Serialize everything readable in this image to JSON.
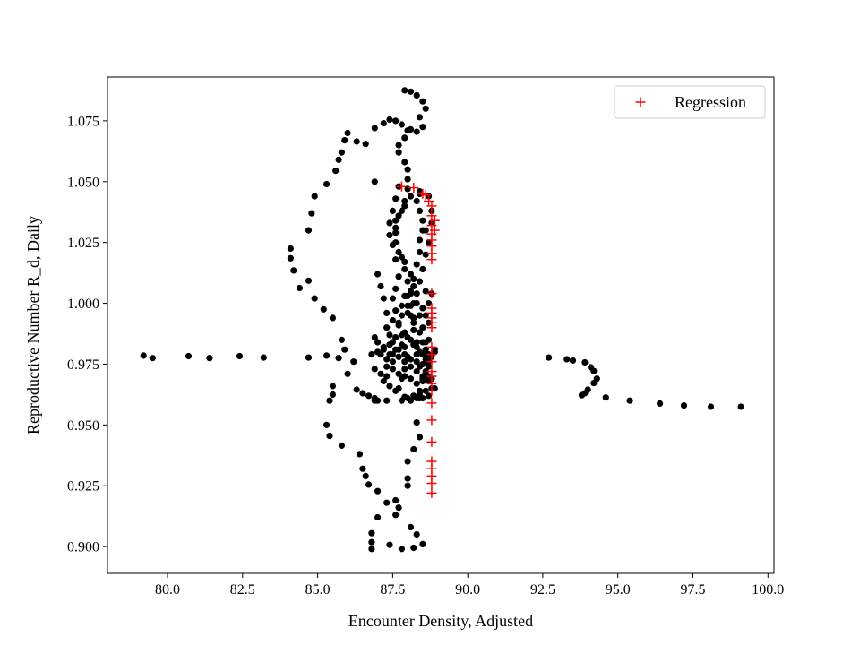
{
  "chart_data": {
    "type": "scatter",
    "xlabel": "Encounter Density, Adjusted",
    "ylabel": "Reproductive Number R_d, Daily",
    "xlim": [
      78.0,
      100.2
    ],
    "ylim": [
      0.889,
      1.093
    ],
    "xticks": [
      "80.0",
      "82.5",
      "85.0",
      "87.5",
      "90.0",
      "92.5",
      "95.0",
      "97.5",
      "100.0"
    ],
    "yticks": [
      "0.900",
      "0.925",
      "0.950",
      "0.975",
      "1.000",
      "1.025",
      "1.050",
      "1.075"
    ],
    "grid": false,
    "legend": {
      "placement": "top-right",
      "entries": [
        "Regression"
      ]
    },
    "colors": {
      "data": "#000000",
      "regression": "#ff0000"
    },
    "series": [
      {
        "marker": "circle",
        "points": [
          [
            79.2,
            0.9785
          ],
          [
            79.5,
            0.9775
          ],
          [
            80.7,
            0.9783
          ],
          [
            81.4,
            0.9775
          ],
          [
            82.4,
            0.9783
          ],
          [
            83.2,
            0.9777
          ],
          [
            84.7,
            0.9777
          ],
          [
            85.3,
            0.9785
          ],
          [
            85.7,
            0.9775
          ],
          [
            92.7,
            0.9777
          ],
          [
            93.3,
            0.977
          ],
          [
            93.5,
            0.9765
          ],
          [
            93.9,
            0.9757
          ],
          [
            94.1,
            0.9737
          ],
          [
            94.2,
            0.9722
          ],
          [
            94.3,
            0.969
          ],
          [
            94.2,
            0.9672
          ],
          [
            94.0,
            0.9645
          ],
          [
            93.9,
            0.963
          ],
          [
            93.8,
            0.9622
          ],
          [
            94.6,
            0.9613
          ],
          [
            95.4,
            0.96
          ],
          [
            96.4,
            0.9588
          ],
          [
            97.2,
            0.958
          ],
          [
            98.1,
            0.9575
          ],
          [
            99.1,
            0.9575
          ],
          [
            85.5,
            0.966
          ],
          [
            85.5,
            0.9625
          ],
          [
            85.4,
            0.96
          ],
          [
            85.3,
            0.95
          ],
          [
            85.4,
            0.9455
          ],
          [
            85.8,
            0.9415
          ],
          [
            86.4,
            0.938
          ],
          [
            86.5,
            0.932
          ],
          [
            86.6,
            0.929
          ],
          [
            86.7,
            0.9255
          ],
          [
            87.0,
            0.9228
          ],
          [
            87.3,
            0.918
          ],
          [
            87.0,
            0.912
          ],
          [
            86.8,
            0.9055
          ],
          [
            86.8,
            0.9018
          ],
          [
            86.8,
            0.899
          ],
          [
            87.4,
            0.9007
          ],
          [
            87.8,
            0.899
          ],
          [
            88.2,
            0.8995
          ],
          [
            88.5,
            0.901
          ],
          [
            88.3,
            0.905
          ],
          [
            88.1,
            0.908
          ],
          [
            87.6,
            0.913
          ],
          [
            87.7,
            0.916
          ],
          [
            87.6,
            0.919
          ],
          [
            88.0,
            0.925
          ],
          [
            88.0,
            0.928
          ],
          [
            88.0,
            0.935
          ],
          [
            88.2,
            0.94
          ],
          [
            88.4,
            0.945
          ],
          [
            88.3,
            0.951
          ],
          [
            84.1,
            1.0225
          ],
          [
            84.1,
            1.0185
          ],
          [
            84.2,
            1.0135
          ],
          [
            84.4,
            1.0063
          ],
          [
            84.7,
            1.0093
          ],
          [
            84.9,
            1.002
          ],
          [
            85.2,
            0.9975
          ],
          [
            85.5,
            0.994
          ],
          [
            85.8,
            0.985
          ],
          [
            85.9,
            0.981
          ],
          [
            86.2,
            0.976
          ],
          [
            86.0,
            0.971
          ],
          [
            86.3,
            0.9645
          ],
          [
            86.5,
            0.963
          ],
          [
            86.7,
            0.962
          ],
          [
            87.0,
            0.96
          ],
          [
            87.3,
            0.96
          ],
          [
            84.7,
            1.03
          ],
          [
            84.8,
            1.037
          ],
          [
            84.9,
            1.044
          ],
          [
            85.3,
            1.049
          ],
          [
            85.6,
            1.0545
          ],
          [
            85.7,
            1.059
          ],
          [
            85.8,
            1.062
          ],
          [
            85.9,
            1.067
          ],
          [
            86.0,
            1.07
          ],
          [
            86.3,
            1.0665
          ],
          [
            86.9,
            1.072
          ],
          [
            87.2,
            1.074
          ],
          [
            87.4,
            1.0755
          ],
          [
            87.6,
            1.075
          ],
          [
            87.8,
            1.0735
          ],
          [
            88.0,
            1.071
          ],
          [
            88.3,
            1.0705
          ],
          [
            88.5,
            1.0725
          ],
          [
            86.9,
            1.05
          ],
          [
            86.6,
            1.0655
          ],
          [
            87.9,
            1.0875
          ],
          [
            88.1,
            1.087
          ],
          [
            88.3,
            1.0855
          ],
          [
            88.5,
            1.083
          ],
          [
            88.6,
            1.08
          ],
          [
            88.4,
            1.0765
          ],
          [
            88.1,
            1.0715
          ],
          [
            87.9,
            1.068
          ],
          [
            87.7,
            1.065
          ],
          [
            87.7,
            1.062
          ],
          [
            87.9,
            1.058
          ],
          [
            88.0,
            1.055
          ],
          [
            88.0,
            1.051
          ],
          [
            88.0,
            1.047
          ],
          [
            87.9,
            1.042
          ],
          [
            87.8,
            1.038
          ],
          [
            87.6,
            1.034
          ],
          [
            87.6,
            1.029
          ],
          [
            87.6,
            1.025
          ],
          [
            87.8,
            1.019
          ],
          [
            87.9,
            1.014
          ],
          [
            88.0,
            1.009
          ],
          [
            88.1,
            1.004
          ],
          [
            88.1,
            0.999
          ],
          [
            88.2,
            0.994
          ],
          [
            88.2,
            0.989
          ],
          [
            88.3,
            0.984
          ],
          [
            88.3,
            0.979
          ],
          [
            88.4,
            0.974
          ],
          [
            88.5,
            0.969
          ],
          [
            88.4,
            0.964
          ],
          [
            88.3,
            0.961
          ],
          [
            88.1,
            0.96
          ],
          [
            87.8,
            0.96
          ],
          [
            88.3,
            1.042
          ],
          [
            88.4,
            1.038
          ],
          [
            88.5,
            1.034
          ],
          [
            88.5,
            1.03
          ],
          [
            88.4,
            1.026
          ],
          [
            88.4,
            1.021
          ],
          [
            88.3,
            1.016
          ],
          [
            88.2,
            1.01
          ],
          [
            88.1,
            1.005
          ],
          [
            88.3,
            1.0
          ],
          [
            88.4,
            0.995
          ],
          [
            88.5,
            0.99
          ],
          [
            88.6,
            0.984
          ],
          [
            88.7,
            0.979
          ],
          [
            88.7,
            0.974
          ],
          [
            88.8,
            0.969
          ],
          [
            88.9,
            0.965
          ],
          [
            88.7,
            0.962
          ],
          [
            88.5,
            0.961
          ],
          [
            87.7,
            1.048
          ],
          [
            87.6,
            1.043
          ],
          [
            87.5,
            1.038
          ],
          [
            87.4,
            1.033
          ],
          [
            87.4,
            1.028
          ],
          [
            87.5,
            1.024
          ],
          [
            87.6,
            1.018
          ],
          [
            87.7,
            1.011
          ],
          [
            87.6,
            1.006
          ],
          [
            87.5,
            1.002
          ],
          [
            87.6,
            0.997
          ],
          [
            87.7,
            0.992
          ],
          [
            87.8,
            0.987
          ],
          [
            87.9,
            0.982
          ],
          [
            88.0,
            0.978
          ],
          [
            87.9,
            0.973
          ],
          [
            87.8,
            0.969
          ],
          [
            87.7,
            0.965
          ],
          [
            87.9,
            1.003
          ],
          [
            88.0,
            0.999
          ],
          [
            88.1,
            0.995
          ],
          [
            88.2,
            0.992
          ],
          [
            88.4,
            0.988
          ],
          [
            88.5,
            0.984
          ],
          [
            88.6,
            0.981
          ],
          [
            88.8,
            0.978
          ],
          [
            88.9,
            0.981
          ],
          [
            88.7,
            0.976
          ],
          [
            88.5,
            0.979
          ],
          [
            88.3,
            0.982
          ],
          [
            88.1,
            0.985
          ],
          [
            87.9,
            0.988
          ],
          [
            87.7,
            0.991
          ],
          [
            87.5,
            0.993
          ],
          [
            87.3,
            0.996
          ],
          [
            87.2,
            1.002
          ],
          [
            87.1,
            1.007
          ],
          [
            87.0,
            1.012
          ],
          [
            87.3,
            0.99
          ],
          [
            87.4,
            0.987
          ],
          [
            87.5,
            0.984
          ],
          [
            87.6,
            0.981
          ],
          [
            87.4,
            0.979
          ],
          [
            87.2,
            0.981
          ],
          [
            87.0,
            0.984
          ],
          [
            86.9,
            0.986
          ],
          [
            87.1,
            0.979
          ],
          [
            87.3,
            0.977
          ],
          [
            87.5,
            0.979
          ],
          [
            87.7,
            0.981
          ],
          [
            87.9,
            0.979
          ],
          [
            88.1,
            0.977
          ],
          [
            88.3,
            0.976
          ],
          [
            88.5,
            0.975
          ],
          [
            88.6,
            0.972
          ],
          [
            88.7,
            0.97
          ],
          [
            88.5,
            0.968
          ],
          [
            88.3,
            0.967
          ],
          [
            88.1,
            0.969
          ],
          [
            87.9,
            0.97
          ],
          [
            87.7,
            0.971
          ],
          [
            87.5,
            0.973
          ],
          [
            87.3,
            0.97
          ],
          [
            87.2,
            0.968
          ],
          [
            87.4,
            0.966
          ],
          [
            87.6,
            0.964
          ],
          [
            88.6,
            1.005
          ],
          [
            88.8,
            1.004
          ],
          [
            88.7,
            1.0
          ],
          [
            88.5,
            0.998
          ],
          [
            88.6,
            0.995
          ],
          [
            88.7,
            0.992
          ],
          [
            88.4,
            1.045
          ],
          [
            88.7,
            1.044
          ],
          [
            88.8,
            1.038
          ],
          [
            88.8,
            1.033
          ],
          [
            88.6,
            1.03
          ],
          [
            88.7,
            1.025
          ],
          [
            88.6,
            1.02
          ],
          [
            88.5,
            1.014
          ],
          [
            88.4,
            1.009
          ],
          [
            88.3,
            1.004
          ],
          [
            88.2,
            1.0
          ],
          [
            88.0,
            0.996
          ],
          [
            87.8,
            0.995
          ],
          [
            87.8,
            0.999
          ],
          [
            88.0,
            1.003
          ],
          [
            88.2,
            1.007
          ],
          [
            88.1,
            1.012
          ],
          [
            87.9,
            1.017
          ],
          [
            87.7,
            1.021
          ],
          [
            87.6,
            1.031
          ],
          [
            87.7,
            1.036
          ],
          [
            87.9,
            1.04
          ],
          [
            88.1,
            1.044
          ],
          [
            88.4,
            1.046
          ],
          [
            88.7,
            0.985
          ],
          [
            88.9,
            0.98
          ],
          [
            88.6,
            0.977
          ],
          [
            88.4,
            0.98
          ],
          [
            88.2,
            0.983
          ],
          [
            88.0,
            0.986
          ],
          [
            87.8,
            0.983
          ],
          [
            87.6,
            0.986
          ],
          [
            87.4,
            0.983
          ],
          [
            87.2,
            0.982
          ],
          [
            87.0,
            0.98
          ],
          [
            86.8,
            0.979
          ],
          [
            86.9,
            0.973
          ],
          [
            87.1,
            0.971
          ],
          [
            87.3,
            0.974
          ],
          [
            87.5,
            0.976
          ],
          [
            87.7,
            0.978
          ],
          [
            87.9,
            0.976
          ],
          [
            88.1,
            0.974
          ],
          [
            88.3,
            0.972
          ],
          [
            88.5,
            0.97
          ],
          [
            88.7,
            0.968
          ],
          [
            88.8,
            0.965
          ],
          [
            88.6,
            0.964
          ],
          [
            88.4,
            0.963
          ],
          [
            88.2,
            0.962
          ],
          [
            88.0,
            0.961
          ],
          [
            88.4,
            0.961
          ],
          [
            87.9,
            0.9615
          ],
          [
            86.9,
            0.961
          ],
          [
            86.9,
            0.96
          ]
        ]
      },
      {
        "name": "Regression",
        "marker": "plus",
        "points": [
          [
            87.8,
            1.048
          ],
          [
            88.2,
            1.0475
          ],
          [
            88.5,
            1.045
          ],
          [
            88.6,
            1.0445
          ],
          [
            88.7,
            1.042
          ],
          [
            88.8,
            1.04
          ],
          [
            88.8,
            1.036
          ],
          [
            88.9,
            1.034
          ],
          [
            88.8,
            1.032
          ],
          [
            88.9,
            1.03
          ],
          [
            88.8,
            1.0285
          ],
          [
            88.8,
            1.026
          ],
          [
            88.8,
            1.0235
          ],
          [
            88.8,
            1.0205
          ],
          [
            88.8,
            1.018
          ],
          [
            88.8,
            1.004
          ],
          [
            88.8,
            0.998
          ],
          [
            88.8,
            0.996
          ],
          [
            88.8,
            0.994
          ],
          [
            88.8,
            0.992
          ],
          [
            88.8,
            0.99
          ],
          [
            88.8,
            0.982
          ],
          [
            88.8,
            0.979
          ],
          [
            88.8,
            0.976
          ],
          [
            88.8,
            0.972
          ],
          [
            88.8,
            0.97
          ],
          [
            88.8,
            0.967
          ],
          [
            88.8,
            0.964
          ],
          [
            88.8,
            0.959
          ],
          [
            88.8,
            0.952
          ],
          [
            88.8,
            0.943
          ],
          [
            88.8,
            0.935
          ],
          [
            88.8,
            0.932
          ],
          [
            88.8,
            0.929
          ],
          [
            88.8,
            0.926
          ],
          [
            88.8,
            0.922
          ]
        ]
      }
    ]
  }
}
